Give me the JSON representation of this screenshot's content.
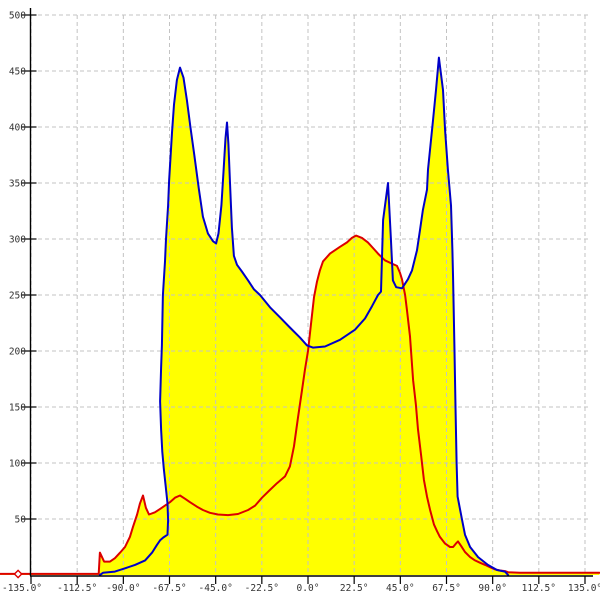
{
  "page": {
    "background": "#ffffff"
  },
  "chart_data": {
    "type": "area",
    "title": "",
    "subtitle": "",
    "xlabel": "",
    "ylabel": "",
    "x_unit": "degrees",
    "xlim": [
      -135,
      135
    ],
    "ylim": [
      0,
      500
    ],
    "grid": true,
    "legend": "none",
    "x_ticks": [
      -135,
      -112.5,
      -90,
      -67.5,
      -45,
      -22.5,
      0,
      22.5,
      45,
      67.5,
      90,
      112.5,
      135
    ],
    "x_tick_labels": [
      "-135.0°",
      "-112.5°",
      "-90.0°",
      "-67.5°",
      "-45.0°",
      "-22.5°",
      "0.0°",
      "22.5°",
      "45.0°",
      "67.5°",
      "90.0°",
      "112.5°",
      "135.0°"
    ],
    "y_ticks": [
      50,
      100,
      150,
      200,
      250,
      300,
      350,
      400,
      450,
      500
    ],
    "y_tick_labels": [
      "50",
      "100",
      "150",
      "200",
      "250",
      "300",
      "350",
      "400",
      "450",
      "500"
    ],
    "axis_color": "#000000",
    "grid_color": "#c3c3c3",
    "tick_label_color": "#333333",
    "fill_color": "#ffff00",
    "series": [
      {
        "name": "blue-distribution",
        "color": "#0000c8",
        "filled": true,
        "points": [
          [
            -101.4,
            0
          ],
          [
            -99.9,
            2
          ],
          [
            -94.1,
            3
          ],
          [
            -89.2,
            6
          ],
          [
            -84.3,
            9
          ],
          [
            -79.4,
            13
          ],
          [
            -76,
            20
          ],
          [
            -73.6,
            27
          ],
          [
            -72.1,
            31
          ],
          [
            -70.5,
            33.5
          ],
          [
            -68.5,
            36
          ],
          [
            -68.2,
            49
          ],
          [
            -68.5,
            64
          ],
          [
            -69.4,
            80
          ],
          [
            -70.3,
            95
          ],
          [
            -71,
            110
          ],
          [
            -71.6,
            130
          ],
          [
            -72.1,
            155
          ],
          [
            -71.6,
            185
          ],
          [
            -71.2,
            205
          ],
          [
            -70.7,
            250
          ],
          [
            -69.7,
            280
          ],
          [
            -69.2,
            300
          ],
          [
            -68.2,
            330
          ],
          [
            -67.7,
            352
          ],
          [
            -66.3,
            395
          ],
          [
            -65.3,
            420
          ],
          [
            -63.9,
            442
          ],
          [
            -62.4,
            453
          ],
          [
            -60.7,
            444
          ],
          [
            -59,
            424
          ],
          [
            -57.3,
            400
          ],
          [
            -55.4,
            375
          ],
          [
            -53.2,
            345
          ],
          [
            -51.2,
            320
          ],
          [
            -48.8,
            305
          ],
          [
            -46.3,
            298
          ],
          [
            -44.8,
            296
          ],
          [
            -43.6,
            305
          ],
          [
            -42.2,
            330
          ],
          [
            -41.2,
            360
          ],
          [
            -40.2,
            390
          ],
          [
            -39.5,
            404
          ],
          [
            -38.8,
            385
          ],
          [
            -38,
            350
          ],
          [
            -37.1,
            310
          ],
          [
            -36.1,
            285
          ],
          [
            -34.6,
            277
          ],
          [
            -32.2,
            271
          ],
          [
            -29.2,
            263
          ],
          [
            -26.3,
            255
          ],
          [
            -23.4,
            250
          ],
          [
            -18.5,
            239
          ],
          [
            -13.6,
            230
          ],
          [
            -8.8,
            221
          ],
          [
            -3.9,
            212
          ],
          [
            -0.5,
            205
          ],
          [
            2.4,
            203
          ],
          [
            8.3,
            204
          ],
          [
            15.6,
            210
          ],
          [
            22.9,
            219
          ],
          [
            27.8,
            229
          ],
          [
            31.2,
            240
          ],
          [
            34.1,
            250
          ],
          [
            35.6,
            253
          ],
          [
            36.6,
            317
          ],
          [
            39,
            350
          ],
          [
            40.4,
            300
          ],
          [
            41.4,
            263
          ],
          [
            43,
            257
          ],
          [
            45.8,
            256
          ],
          [
            48.7,
            264
          ],
          [
            50.7,
            272
          ],
          [
            53.1,
            290
          ],
          [
            54.6,
            308
          ],
          [
            56,
            326
          ],
          [
            58,
            344
          ],
          [
            58.5,
            362
          ],
          [
            60.9,
            406
          ],
          [
            62.4,
            433
          ],
          [
            63.8,
            462
          ],
          [
            65.8,
            433
          ],
          [
            66.8,
            397
          ],
          [
            68.2,
            362
          ],
          [
            69.7,
            330
          ],
          [
            70.4,
            290
          ],
          [
            70.7,
            264
          ],
          [
            71.4,
            200
          ],
          [
            71.9,
            150
          ],
          [
            72.4,
            100
          ],
          [
            72.9,
            70
          ],
          [
            75.1,
            49
          ],
          [
            76.5,
            36
          ],
          [
            79,
            25
          ],
          [
            82.9,
            16
          ],
          [
            87.7,
            9
          ],
          [
            92.1,
            4.5
          ],
          [
            96,
            3
          ],
          [
            97.5,
            0
          ]
        ]
      },
      {
        "name": "red-distribution",
        "color": "#dc0000",
        "filled": true,
        "points": [
          [
            -150,
            1
          ],
          [
            -102,
            1
          ],
          [
            -101.4,
            20
          ],
          [
            -99.4,
            12
          ],
          [
            -96.5,
            12
          ],
          [
            -94.1,
            15
          ],
          [
            -91.6,
            20
          ],
          [
            -89.2,
            25
          ],
          [
            -86.8,
            34
          ],
          [
            -85.3,
            43
          ],
          [
            -83.3,
            54
          ],
          [
            -81.9,
            64
          ],
          [
            -80.4,
            71
          ],
          [
            -79,
            60
          ],
          [
            -77.5,
            54
          ],
          [
            -74.6,
            56
          ],
          [
            -72.1,
            59
          ],
          [
            -69.7,
            62
          ],
          [
            -67.3,
            65
          ],
          [
            -64.8,
            69
          ],
          [
            -62.4,
            71
          ],
          [
            -59.9,
            68
          ],
          [
            -57.5,
            65
          ],
          [
            -54.1,
            61
          ],
          [
            -51.2,
            58
          ],
          [
            -47.8,
            55.5
          ],
          [
            -43.9,
            54
          ],
          [
            -39,
            53.5
          ],
          [
            -34.1,
            54.5
          ],
          [
            -29.2,
            58
          ],
          [
            -25.8,
            62
          ],
          [
            -22.4,
            69
          ],
          [
            -18.5,
            76
          ],
          [
            -15.1,
            82
          ],
          [
            -11.2,
            88
          ],
          [
            -8.8,
            97
          ],
          [
            -6.8,
            115
          ],
          [
            -4.9,
            140
          ],
          [
            -2.9,
            165
          ],
          [
            -1.5,
            183
          ],
          [
            0,
            200
          ],
          [
            1.5,
            225
          ],
          [
            2.9,
            248
          ],
          [
            4.4,
            262
          ],
          [
            5.8,
            272
          ],
          [
            7.3,
            280
          ],
          [
            10.7,
            287
          ],
          [
            15.6,
            293
          ],
          [
            19,
            297
          ],
          [
            21.4,
            301
          ],
          [
            23.4,
            303
          ],
          [
            26.3,
            301
          ],
          [
            29.2,
            297
          ],
          [
            31.7,
            292
          ],
          [
            34.1,
            287
          ],
          [
            37.5,
            281
          ],
          [
            40.9,
            278
          ],
          [
            43.4,
            276
          ],
          [
            44.8,
            270
          ],
          [
            45.8,
            264
          ],
          [
            47.3,
            250
          ],
          [
            48.2,
            237
          ],
          [
            49.7,
            213
          ],
          [
            51.2,
            174
          ],
          [
            52.6,
            152
          ],
          [
            53.6,
            130
          ],
          [
            55.1,
            107
          ],
          [
            56.5,
            85
          ],
          [
            58,
            70
          ],
          [
            59.5,
            58
          ],
          [
            61.4,
            45
          ],
          [
            62.9,
            39
          ],
          [
            64.3,
            34
          ],
          [
            66.8,
            28
          ],
          [
            69.2,
            25
          ],
          [
            70.7,
            25
          ],
          [
            72.1,
            28
          ],
          [
            73.1,
            30
          ],
          [
            74.6,
            26
          ],
          [
            76.5,
            20.5
          ],
          [
            79,
            16
          ],
          [
            81.4,
            13
          ],
          [
            83.8,
            11
          ],
          [
            86.3,
            9
          ],
          [
            88.7,
            7
          ],
          [
            91.1,
            5
          ],
          [
            93.6,
            4
          ],
          [
            96,
            3.5
          ],
          [
            97.5,
            2.5
          ],
          [
            103.3,
            2
          ],
          [
            142,
            2
          ]
        ]
      }
    ],
    "start_marker": {
      "shape": "diamond",
      "x": -141.3,
      "y": 0.9,
      "color": "#dc0000"
    }
  }
}
